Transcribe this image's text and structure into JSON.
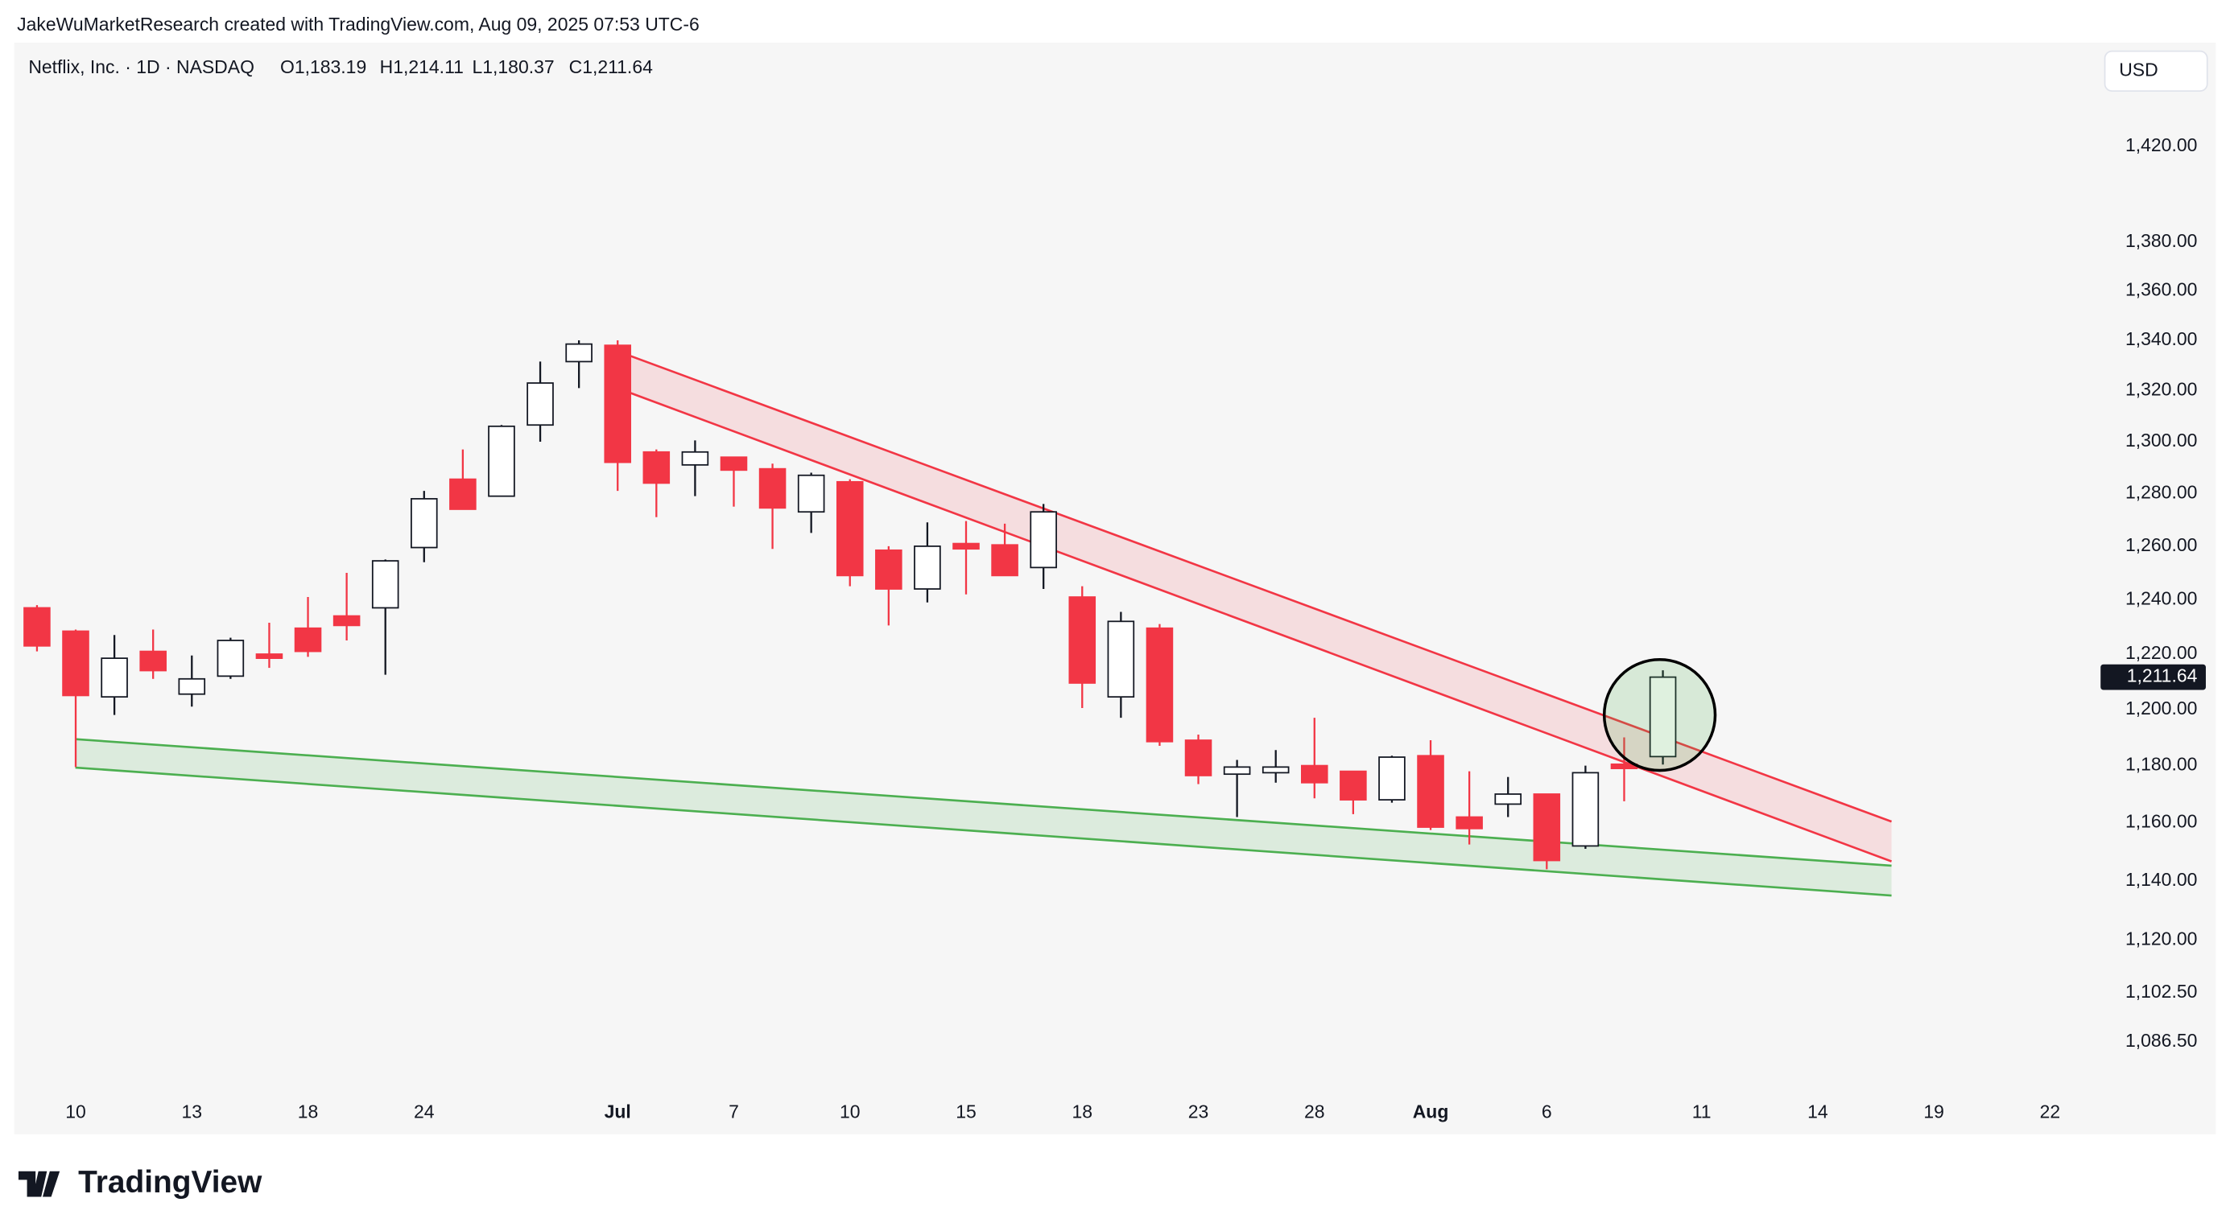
{
  "header": {
    "credit": "JakeWuMarketResearch created with TradingView.com, Aug 09, 2025 07:53 UTC-6",
    "symbol": "Netflix, Inc. · 1D · NASDAQ",
    "ohlc": [
      "O1,183.19",
      "H1,214.11",
      "L1,180.37",
      "C1,211.64"
    ],
    "currency": "USD"
  },
  "footer": {
    "brand": "TradingView"
  },
  "chart_data": {
    "type": "candlestick",
    "categories": [
      null,
      "10",
      null,
      null,
      "13",
      null,
      null,
      "18",
      null,
      null,
      "24",
      null,
      null,
      null,
      null,
      "Jul",
      null,
      null,
      "7",
      null,
      null,
      "10",
      null,
      null,
      "15",
      null,
      null,
      "18",
      null,
      null,
      "23",
      null,
      null,
      "28",
      null,
      null,
      "Aug",
      null,
      null,
      "6",
      null,
      null,
      null,
      "11",
      null,
      null,
      "14",
      null,
      null,
      "19",
      null,
      null,
      "22"
    ],
    "open": [
      1237,
      1228.4,
      1204.5,
      1221,
      1205.5,
      1212,
      1220,
      1229.5,
      1234,
      1237,
      1259.5,
      1285.5,
      1279,
      1306.5,
      1331.5,
      1338,
      1296,
      1291,
      1294,
      1289.5,
      1273,
      1284.5,
      1258.5,
      1244,
      1261,
      1260.5,
      1252,
      1241,
      1204.5,
      1229.5,
      1189,
      1177,
      1177.5,
      1180,
      1178,
      1168,
      1183.5,
      1162,
      1166.5,
      1170,
      1152,
      1180.5,
      1183.19,
      null,
      null,
      null,
      null,
      null,
      null,
      null,
      null,
      null,
      null
    ],
    "high": [
      1238,
      1229,
      1227,
      1229,
      1219.5,
      1226,
      1231.5,
      1241,
      1250,
      1255,
      1281,
      1297,
      1306.5,
      1331.5,
      1340,
      1340,
      1297,
      1300.5,
      1294,
      1291.5,
      1288,
      1285.5,
      1260,
      1269,
      1269.5,
      1268.5,
      1276,
      1245,
      1235.5,
      1231,
      1191,
      1182,
      1185.5,
      1197,
      1178,
      1183.5,
      1189,
      1178,
      1176,
      1170,
      1180,
      1190,
      1214.11,
      null,
      null,
      null,
      null,
      null,
      null,
      null,
      null,
      null,
      null
    ],
    "low": [
      1221,
      1179.5,
      1198,
      1211,
      1201,
      1211,
      1215,
      1219,
      1225,
      1212.5,
      1254,
      1274,
      1279,
      1300,
      1321,
      1281,
      1271,
      1279,
      1275,
      1259,
      1265,
      1245,
      1230.5,
      1239,
      1242,
      1249,
      1244,
      1200.5,
      1197,
      1187,
      1173.5,
      1162,
      1174,
      1168.5,
      1163,
      1167,
      1157.5,
      1152.5,
      1162,
      1144,
      1151,
      1167.5,
      1180.37,
      null,
      null,
      null,
      null,
      null,
      null,
      null,
      null,
      null,
      null
    ],
    "close": [
      1223,
      1205,
      1218.5,
      1214,
      1211,
      1225,
      1218.5,
      1221,
      1230.5,
      1254.5,
      1278,
      1274,
      1306,
      1323,
      1338.5,
      1292,
      1284,
      1296,
      1289,
      1274.5,
      1287,
      1249,
      1244,
      1260,
      1259,
      1249,
      1273,
      1209.5,
      1232,
      1188.5,
      1176.5,
      1179.5,
      1179.5,
      1174,
      1168,
      1183,
      1158.5,
      1158,
      1170,
      1147,
      1177.5,
      1179,
      1211.64,
      null,
      null,
      null,
      null,
      null,
      null,
      null,
      null,
      null,
      null
    ],
    "up_color": "#ffffff",
    "down_color": "#f23645",
    "log_scale": true,
    "ylim": [
      1069.5,
      1464.7
    ],
    "yticks": [
      {
        "value": 1086.5,
        "label": "1,086.50"
      },
      {
        "value": 1102.5,
        "label": "1,102.50"
      },
      {
        "value": 1120,
        "label": "1,120.00"
      },
      {
        "value": 1140,
        "label": "1,140.00"
      },
      {
        "value": 1160,
        "label": "1,160.00"
      },
      {
        "value": 1180,
        "label": "1,180.00"
      },
      {
        "value": 1200,
        "label": "1,200.00"
      },
      {
        "value": 1220,
        "label": "1,220.00"
      },
      {
        "value": 1240,
        "label": "1,240.00"
      },
      {
        "value": 1260,
        "label": "1,260.00"
      },
      {
        "value": 1280,
        "label": "1,280.00"
      },
      {
        "value": 1300,
        "label": "1,300.00"
      },
      {
        "value": 1320,
        "label": "1,320.00"
      },
      {
        "value": 1340,
        "label": "1,340.00"
      },
      {
        "value": 1360,
        "label": "1,360.00"
      },
      {
        "value": 1380,
        "label": "1,380.00"
      },
      {
        "value": 1420,
        "label": "1,420.00"
      }
    ],
    "last_price": {
      "value": 1211.64,
      "label": "1,211.64"
    }
  }
}
